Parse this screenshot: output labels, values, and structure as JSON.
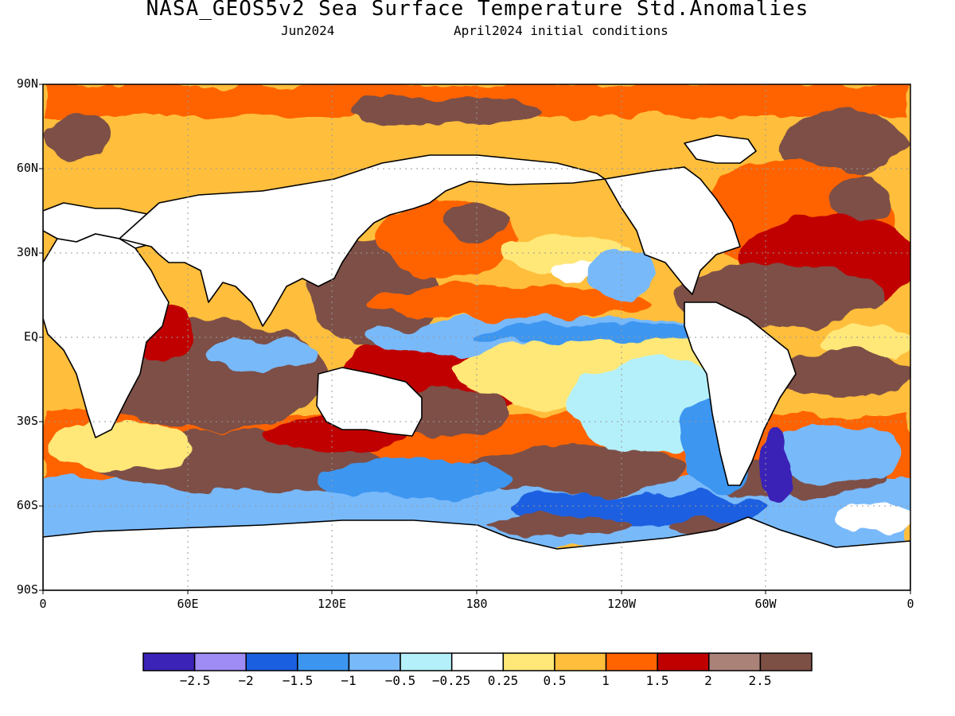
{
  "header": {
    "title": "NASA_GEOS5v2 Sea Surface Temperature Std.Anomalies",
    "month": "Jun2024",
    "conditions": "April2024 initial conditions"
  },
  "map": {
    "lat_labels": [
      "90N",
      "60N",
      "30N",
      "EQ",
      "30S",
      "60S",
      "90S"
    ],
    "lon_labels": [
      "0",
      "60E",
      "120E",
      "180",
      "120W",
      "60W",
      "0"
    ],
    "grid": "dotted"
  },
  "colorbar": {
    "labels": [
      "-2.5",
      "-2",
      "-1.5",
      "-1",
      "-0.5",
      "-0.25",
      "0.25",
      "0.5",
      "1",
      "1.5",
      "2",
      "2.5"
    ],
    "colors": [
      "#3a23b6",
      "#a08cf5",
      "#1a5fe0",
      "#3c96f0",
      "#78b9fa",
      "#b4f0fa",
      "#ffffff",
      "#ffe878",
      "#ffbe3c",
      "#ff6400",
      "#c00000",
      "#aa8278",
      "#7d5046"
    ]
  }
}
